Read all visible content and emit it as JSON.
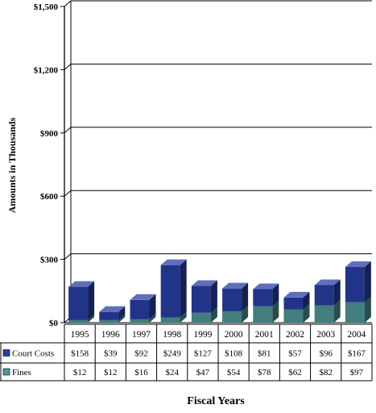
{
  "chart_data": {
    "type": "bar",
    "stacked": true,
    "categories": [
      "1995",
      "1996",
      "1997",
      "1998",
      "1999",
      "2000",
      "2001",
      "2002",
      "2003",
      "2004"
    ],
    "series": [
      {
        "name": "Court Costs",
        "values": [
          158,
          39,
          92,
          249,
          127,
          108,
          81,
          57,
          96,
          167
        ],
        "labels": [
          "$158",
          "$39",
          "$92",
          "$249",
          "$127",
          "$108",
          "$81",
          "$57",
          "$96",
          "$167"
        ],
        "color": "#2a3fa6"
      },
      {
        "name": "Fines",
        "values": [
          12,
          12,
          16,
          24,
          47,
          54,
          78,
          62,
          82,
          97
        ],
        "labels": [
          "$12",
          "$12",
          "$16",
          "$24",
          "$47",
          "$54",
          "$78",
          "$62",
          "$82",
          "$97"
        ],
        "color": "#4f9a98"
      }
    ],
    "ylim": [
      0,
      1500
    ],
    "yticks": [
      0,
      300,
      600,
      900,
      1200,
      1500
    ],
    "ytick_labels": [
      "$0",
      "$300",
      "$600",
      "$900",
      "$1,200",
      "$1,500"
    ],
    "ylabel": "Amounts in Thousands",
    "xlabel": "Fiscal Years",
    "grid": true,
    "legend": "data-table-left"
  }
}
